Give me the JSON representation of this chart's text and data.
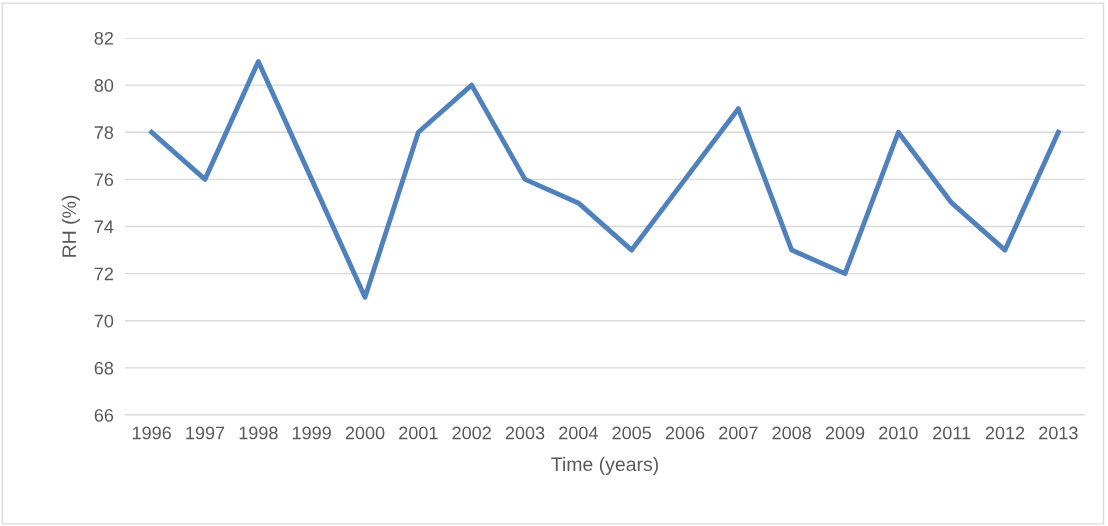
{
  "chart_data": {
    "type": "line",
    "xlabel": "Time (years)",
    "ylabel": "RH (%)",
    "categories": [
      "1996",
      "1997",
      "1998",
      "1999",
      "2000",
      "2001",
      "2002",
      "2003",
      "2004",
      "2005",
      "2006",
      "2007",
      "2008",
      "2009",
      "2010",
      "2011",
      "2012",
      "2013"
    ],
    "series": [
      {
        "color": "#4f81bd",
        "values": [
          78,
          76,
          81,
          76,
          71,
          78,
          80,
          76,
          75,
          73,
          76,
          79,
          73,
          72,
          78,
          75,
          73,
          78
        ]
      }
    ],
    "ylim": [
      66,
      82
    ],
    "yticks": [
      66,
      68,
      70,
      72,
      74,
      76,
      78,
      80,
      82
    ],
    "grid": "y",
    "marker": "none",
    "line_style": "solid"
  }
}
